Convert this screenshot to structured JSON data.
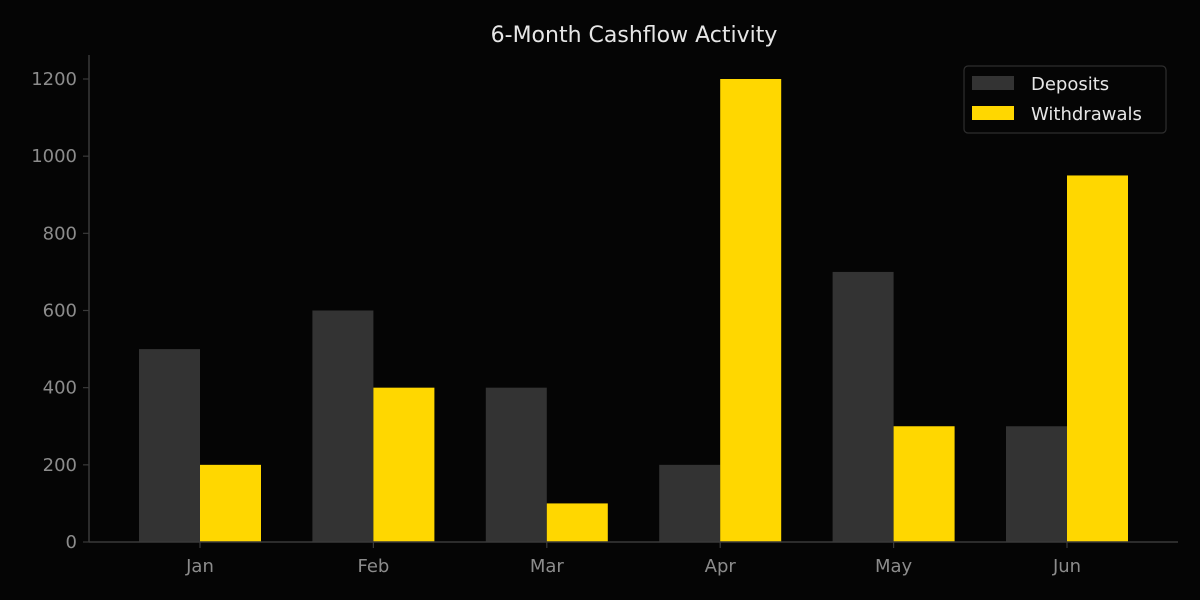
{
  "chart_data": {
    "type": "bar",
    "title": "6-Month Cashflow Activity",
    "xlabel": "",
    "ylabel": "",
    "categories": [
      "Jan",
      "Feb",
      "Mar",
      "Apr",
      "May",
      "Jun"
    ],
    "series": [
      {
        "name": "Deposits",
        "color": "#333333",
        "values": [
          500,
          600,
          400,
          200,
          700,
          300
        ]
      },
      {
        "name": "Withdrawals",
        "color": "#ffd700",
        "values": [
          200,
          400,
          100,
          1200,
          300,
          950
        ]
      }
    ],
    "ylim": [
      0,
      1200
    ],
    "yticks": [
      0,
      200,
      400,
      600,
      800,
      1000,
      1200
    ],
    "grid": false,
    "legend_position": "upper right"
  },
  "colors": {
    "background": "#050505",
    "axis": "#3a3a3a",
    "tick_text": "#8c8c8c",
    "title_text": "#e6e6e6"
  }
}
